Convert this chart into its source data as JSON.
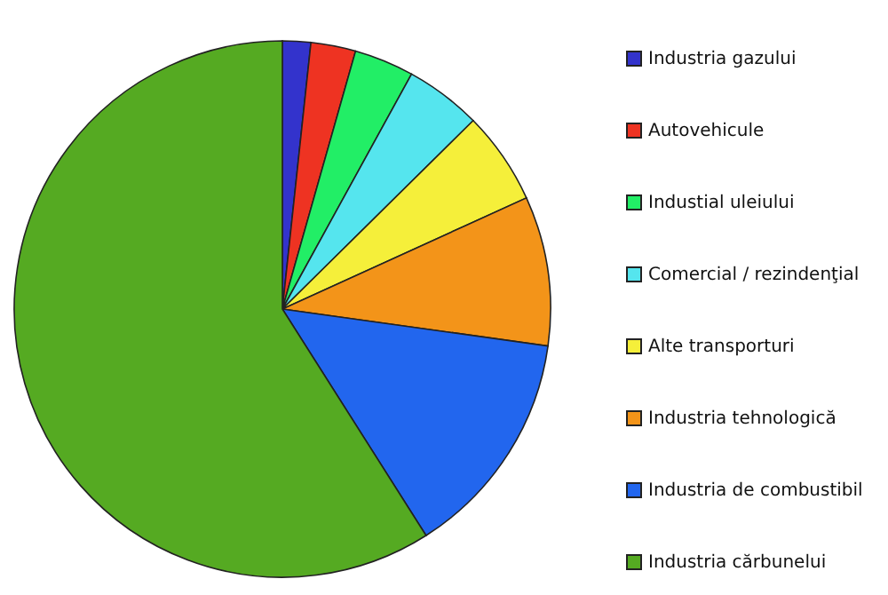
{
  "chart_data": {
    "type": "pie",
    "categories": [
      "Industria gazului",
      "Autovehicule",
      "Industial uleiului",
      "Comercial / rezindenţial",
      "Alte transporturi",
      "Industria tehnologică",
      "Industria de combustibil",
      "Industria cărbunelui"
    ],
    "values": [
      1.7,
      2.7,
      3.6,
      4.6,
      5.6,
      9.0,
      13.8,
      59.0
    ],
    "colors": [
      "#3333cc",
      "#ee3322",
      "#22ee66",
      "#55e5ee",
      "#f5ef3a",
      "#f39419",
      "#2266ee",
      "#55aa22"
    ],
    "legend": "right"
  }
}
